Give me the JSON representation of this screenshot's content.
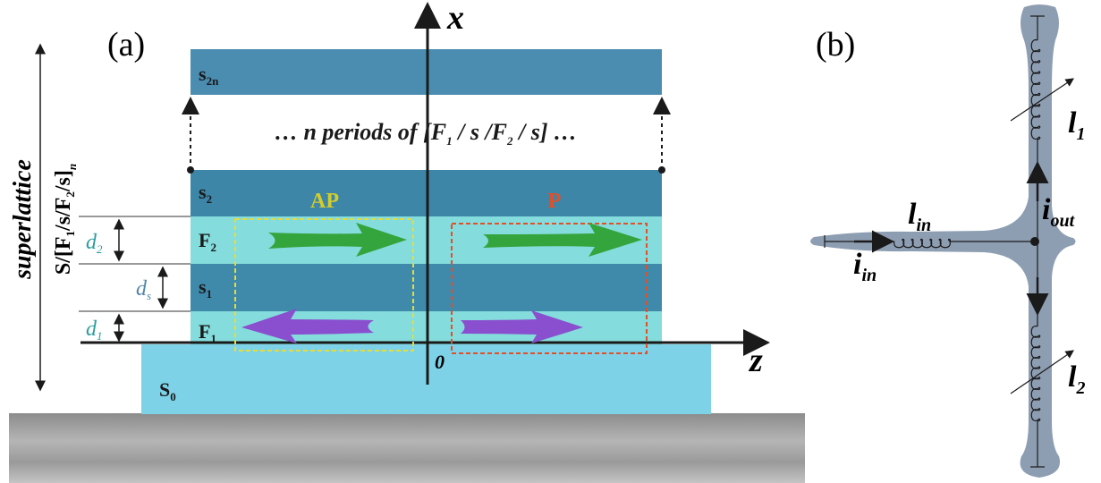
{
  "panel_a": {
    "label": "(a)",
    "axis_x": "x",
    "axis_z": "z",
    "origin": "0",
    "layers": {
      "s2n": {
        "base": "s",
        "sub": "2n"
      },
      "s2": {
        "base": "s",
        "sub": "2"
      },
      "F2": {
        "base": "F",
        "sub": "2"
      },
      "s1": {
        "base": "s",
        "sub": "1"
      },
      "F1": {
        "base": "F",
        "sub": "1"
      },
      "S0": {
        "base": "S",
        "sub": "0"
      }
    },
    "periods": [
      "… n periods of [F",
      "1",
      " / s /F",
      "2",
      " / s] …"
    ],
    "AP": "AP",
    "P": "P",
    "d2": {
      "base": "d",
      "sub": "2"
    },
    "ds": {
      "base": "d",
      "sub": "s"
    },
    "d1": {
      "base": "d",
      "sub": "1"
    },
    "superlattice": "superlattice",
    "formula": [
      "S/[F",
      "1",
      "/s/F",
      "2",
      "/s]",
      "n"
    ]
  },
  "panel_b": {
    "label": "(b)",
    "l1": {
      "base": "l",
      "sub": "1"
    },
    "l2": {
      "base": "l",
      "sub": "2"
    },
    "lin": {
      "base": "l",
      "sub": "in"
    },
    "iin": {
      "base": "i",
      "sub": "in"
    },
    "iout": {
      "base": "i",
      "sub": "out"
    }
  }
}
